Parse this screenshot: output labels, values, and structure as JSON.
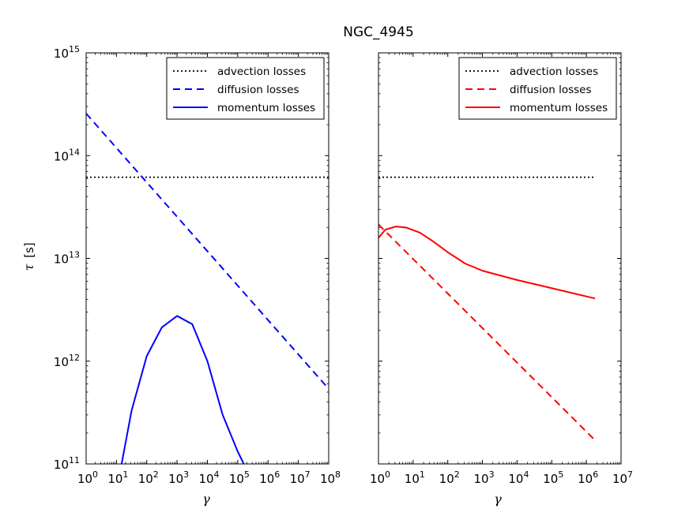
{
  "chart_data": {
    "title": "NGC_4945",
    "ylabel_symbol": "τ",
    "ylabel_unit": "[s]",
    "xlabel": "γ",
    "y_axis": {
      "scale": "log",
      "ylim_exp": [
        11,
        15
      ],
      "tick_exponents": [
        11,
        12,
        13,
        14,
        15
      ],
      "tick_base": "10"
    },
    "panels": [
      {
        "name": "left",
        "type": "line",
        "x_axis": {
          "scale": "log",
          "xlim_exp": [
            0,
            8
          ],
          "tick_exponents": [
            0,
            1,
            2,
            3,
            4,
            5,
            6,
            7,
            8
          ],
          "tick_base": "10"
        },
        "legend_location": "top-right",
        "series": [
          {
            "name": "advection losses",
            "style": "dotted",
            "color": "#000000",
            "log_x": [
              0,
              8
            ],
            "log_y": [
              13.79,
              13.79
            ]
          },
          {
            "name": "diffusion losses",
            "style": "dashed",
            "color": "#0000ff",
            "log_x": [
              0,
              8
            ],
            "log_y": [
              14.41,
              11.73
            ]
          },
          {
            "name": "momentum losses",
            "style": "solid",
            "color": "#0000ff",
            "log_x": [
              1.17,
              1.5,
              2.0,
              2.5,
              3.0,
              3.5,
              4.0,
              4.5,
              5.0,
              5.2
            ],
            "log_y": [
              11.0,
              11.52,
              12.05,
              12.33,
              12.44,
              12.36,
              12.0,
              11.48,
              11.12,
              11.0
            ]
          }
        ]
      },
      {
        "name": "right",
        "type": "line",
        "x_axis": {
          "scale": "log",
          "xlim_exp": [
            0,
            7
          ],
          "tick_exponents": [
            0,
            1,
            2,
            3,
            4,
            5,
            6,
            7
          ],
          "tick_base": "10"
        },
        "legend_location": "top-right",
        "series": [
          {
            "name": "advection losses",
            "style": "dotted",
            "color": "#000000",
            "log_x": [
              0,
              6.25
            ],
            "log_y": [
              13.79,
              13.79
            ]
          },
          {
            "name": "diffusion losses",
            "style": "dashed",
            "color": "#ff0000",
            "log_x": [
              0,
              6.25
            ],
            "log_y": [
              13.33,
              11.23
            ]
          },
          {
            "name": "momentum losses",
            "style": "solid",
            "color": "#ff0000",
            "log_x": [
              0,
              0.2,
              0.5,
              0.8,
              1.2,
              1.6,
              2.0,
              2.5,
              3.0,
              4.0,
              5.0,
              6.25
            ],
            "log_y": [
              13.2,
              13.28,
              13.31,
              13.3,
              13.25,
              13.16,
              13.06,
              12.95,
              12.88,
              12.79,
              12.71,
              12.61
            ]
          }
        ]
      }
    ]
  }
}
